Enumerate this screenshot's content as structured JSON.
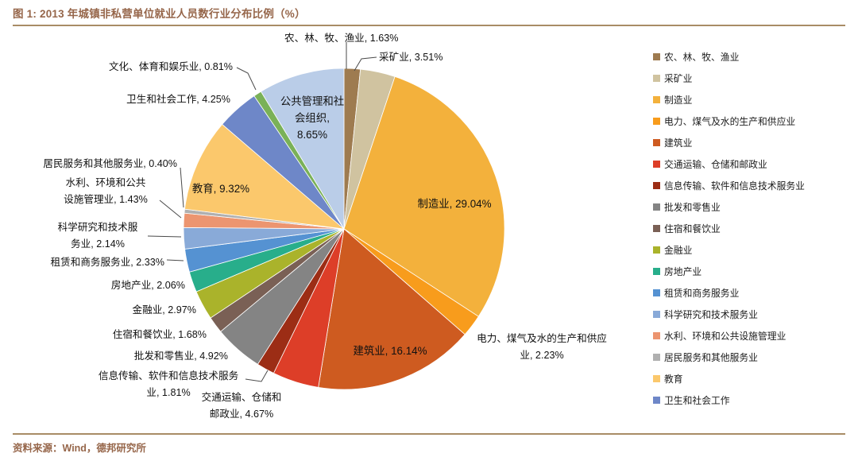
{
  "figure": {
    "title": "图 1: 2013 年城镇非私营单位就业人员数行业分布比例（%）",
    "source": "资料来源：Wind，德邦研究所"
  },
  "colors": {
    "title_brown": "#96664A",
    "rule": "#A88C66",
    "label_text": "#111111",
    "leader_line": "#4a4a4a",
    "background": "#ffffff"
  },
  "chart_data": {
    "type": "pie",
    "title": "2013 年城镇非私营单位就业人员数行业分布比例（%）",
    "value_unit": "%",
    "legend_position": "right",
    "legend_visible_items": 17,
    "slices": [
      {
        "name": "农、林、牧、渔业",
        "value": 1.63,
        "color": "#9E7B50",
        "label_lines": [
          "农、林、牧、渔业, 1.63%"
        ]
      },
      {
        "name": "采矿业",
        "value": 3.51,
        "color": "#D0C3A0",
        "label_lines": [
          "采矿业, 3.51%"
        ]
      },
      {
        "name": "制造业",
        "value": 29.04,
        "color": "#F3B13C",
        "label_lines": [
          "制造业, 29.04%"
        ]
      },
      {
        "name": "电力、煤气及水的生产和供应业",
        "value": 2.23,
        "color": "#F89C1C",
        "label_lines": [
          "电力、煤气及水的生产和供应",
          "业, 2.23%"
        ]
      },
      {
        "name": "建筑业",
        "value": 16.14,
        "color": "#CE5B20",
        "label_lines": [
          "建筑业, 16.14%"
        ]
      },
      {
        "name": "交通运输、仓储和邮政业",
        "value": 4.67,
        "color": "#DD3E28",
        "label_lines": [
          "交通运输、仓储和",
          "邮政业, 4.67%"
        ]
      },
      {
        "name": "信息传输、软件和信息技术服务业",
        "value": 1.81,
        "color": "#9C2D15",
        "label_lines": [
          "信息传输、软件和信息技术服务",
          "业, 1.81%"
        ]
      },
      {
        "name": "批发和零售业",
        "value": 4.92,
        "color": "#848484",
        "label_lines": [
          "批发和零售业, 4.92%"
        ]
      },
      {
        "name": "住宿和餐饮业",
        "value": 1.68,
        "color": "#7A6055",
        "label_lines": [
          "住宿和餐饮业, 1.68%"
        ]
      },
      {
        "name": "金融业",
        "value": 2.97,
        "color": "#AAB32B",
        "label_lines": [
          "金融业, 2.97%"
        ]
      },
      {
        "name": "房地产业",
        "value": 2.06,
        "color": "#28AE8B",
        "label_lines": [
          "房地产业, 2.06%"
        ]
      },
      {
        "name": "租赁和商务服务业",
        "value": 2.33,
        "color": "#5592D2",
        "label_lines": [
          "租赁和商务服务业, 2.33%"
        ]
      },
      {
        "name": "科学研究和技术服务业",
        "value": 2.14,
        "color": "#89AAD8",
        "label_lines": [
          "科学研究和技术服",
          "务业, 2.14%"
        ]
      },
      {
        "name": "水利、环境和公共设施管理业",
        "value": 1.43,
        "color": "#EC9570",
        "label_lines": [
          "水利、环境和公共",
          "设施管理业, 1.43%"
        ]
      },
      {
        "name": "居民服务和其他服务业",
        "value": 0.4,
        "color": "#B0B0B0",
        "label_lines": [
          "居民服务和其他服务业, 0.40%"
        ]
      },
      {
        "name": "教育",
        "value": 9.32,
        "color": "#FBC86C",
        "label_lines": [
          "教育, 9.32%"
        ]
      },
      {
        "name": "卫生和社会工作",
        "value": 4.25,
        "color": "#6E87C8",
        "label_lines": [
          "卫生和社会工作, 4.25%"
        ]
      },
      {
        "name": "文化、体育和娱乐业",
        "value": 0.81,
        "color": "#7AB158",
        "label_lines": [
          "文化、体育和娱乐业, 0.81%"
        ]
      },
      {
        "name": "公共管理和社会组织",
        "value": 8.65,
        "color": "#BACDE8",
        "label_lines": [
          "公共管理和社",
          "会组织,",
          "8.65%"
        ]
      }
    ]
  }
}
